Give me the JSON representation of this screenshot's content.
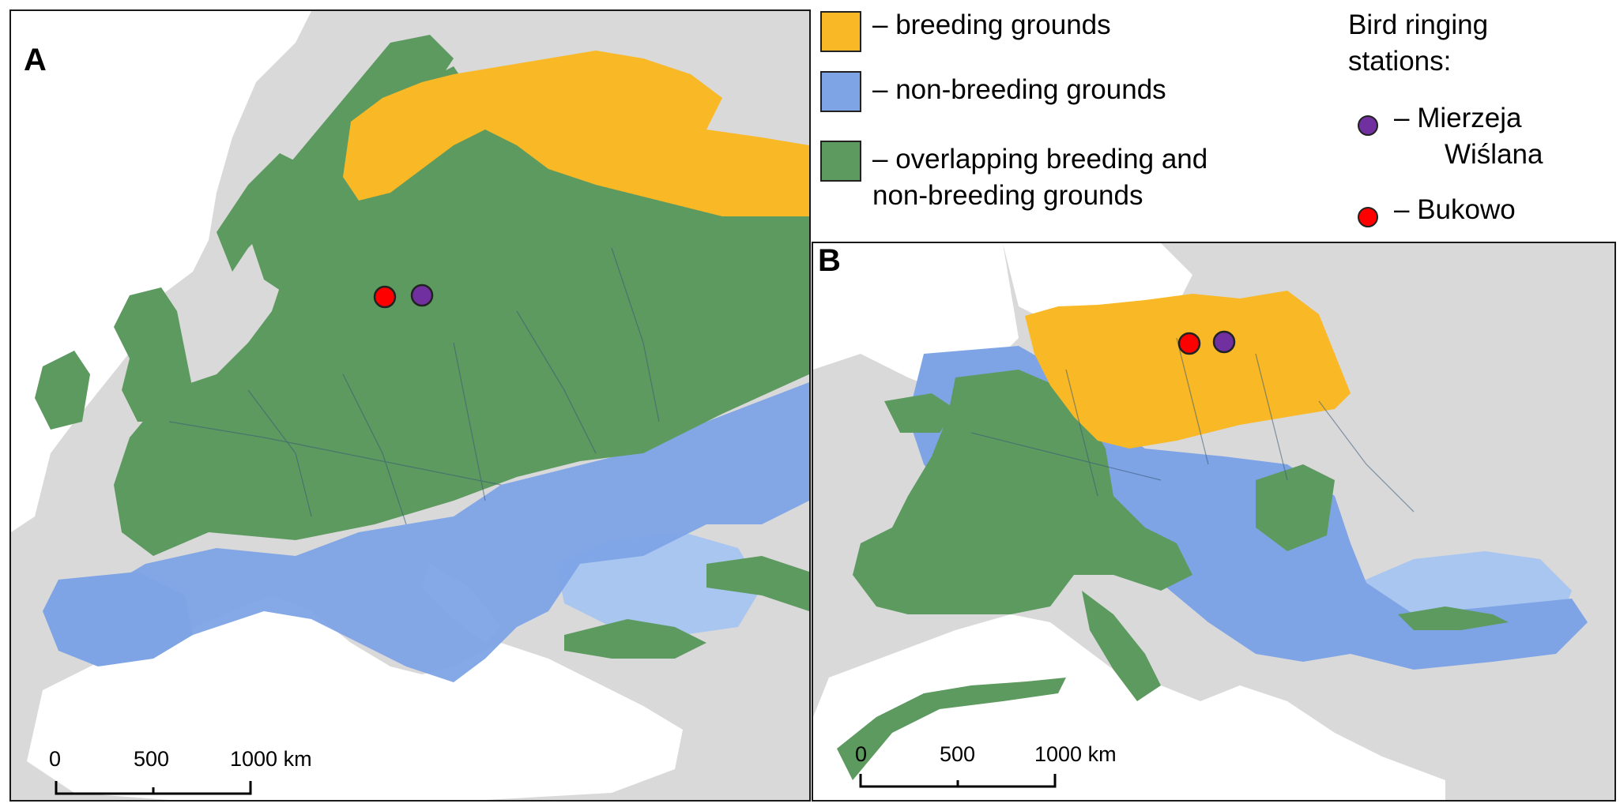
{
  "colors": {
    "breeding": "#f9b826",
    "non_breeding": "#7ea4e6",
    "overlapping": "#5d9a5f",
    "water": "#ffffff",
    "land": "#d9d9d9",
    "inland_sea": "#a9c6f0",
    "station_mierzeja": "#7030a0",
    "station_bukowo": "#ff0000"
  },
  "legend": {
    "breeding": "– breeding grounds",
    "non_breeding": "– non-breeding grounds",
    "overlapping_line1": "– overlapping breeding and",
    "overlapping_line2": "non-breeding grounds",
    "stations_title_line1": "Bird ringing",
    "stations_title_line2": "stations:",
    "mierzeja_line1": "–  Mierzeja",
    "mierzeja_line2": "Wiślana",
    "bukowo": "–  Bukowo"
  },
  "panels": {
    "a": {
      "letter": "A"
    },
    "b": {
      "letter": "B"
    }
  },
  "scale": {
    "tick0": "0",
    "tick1": "500",
    "tick2": "1000 km"
  }
}
